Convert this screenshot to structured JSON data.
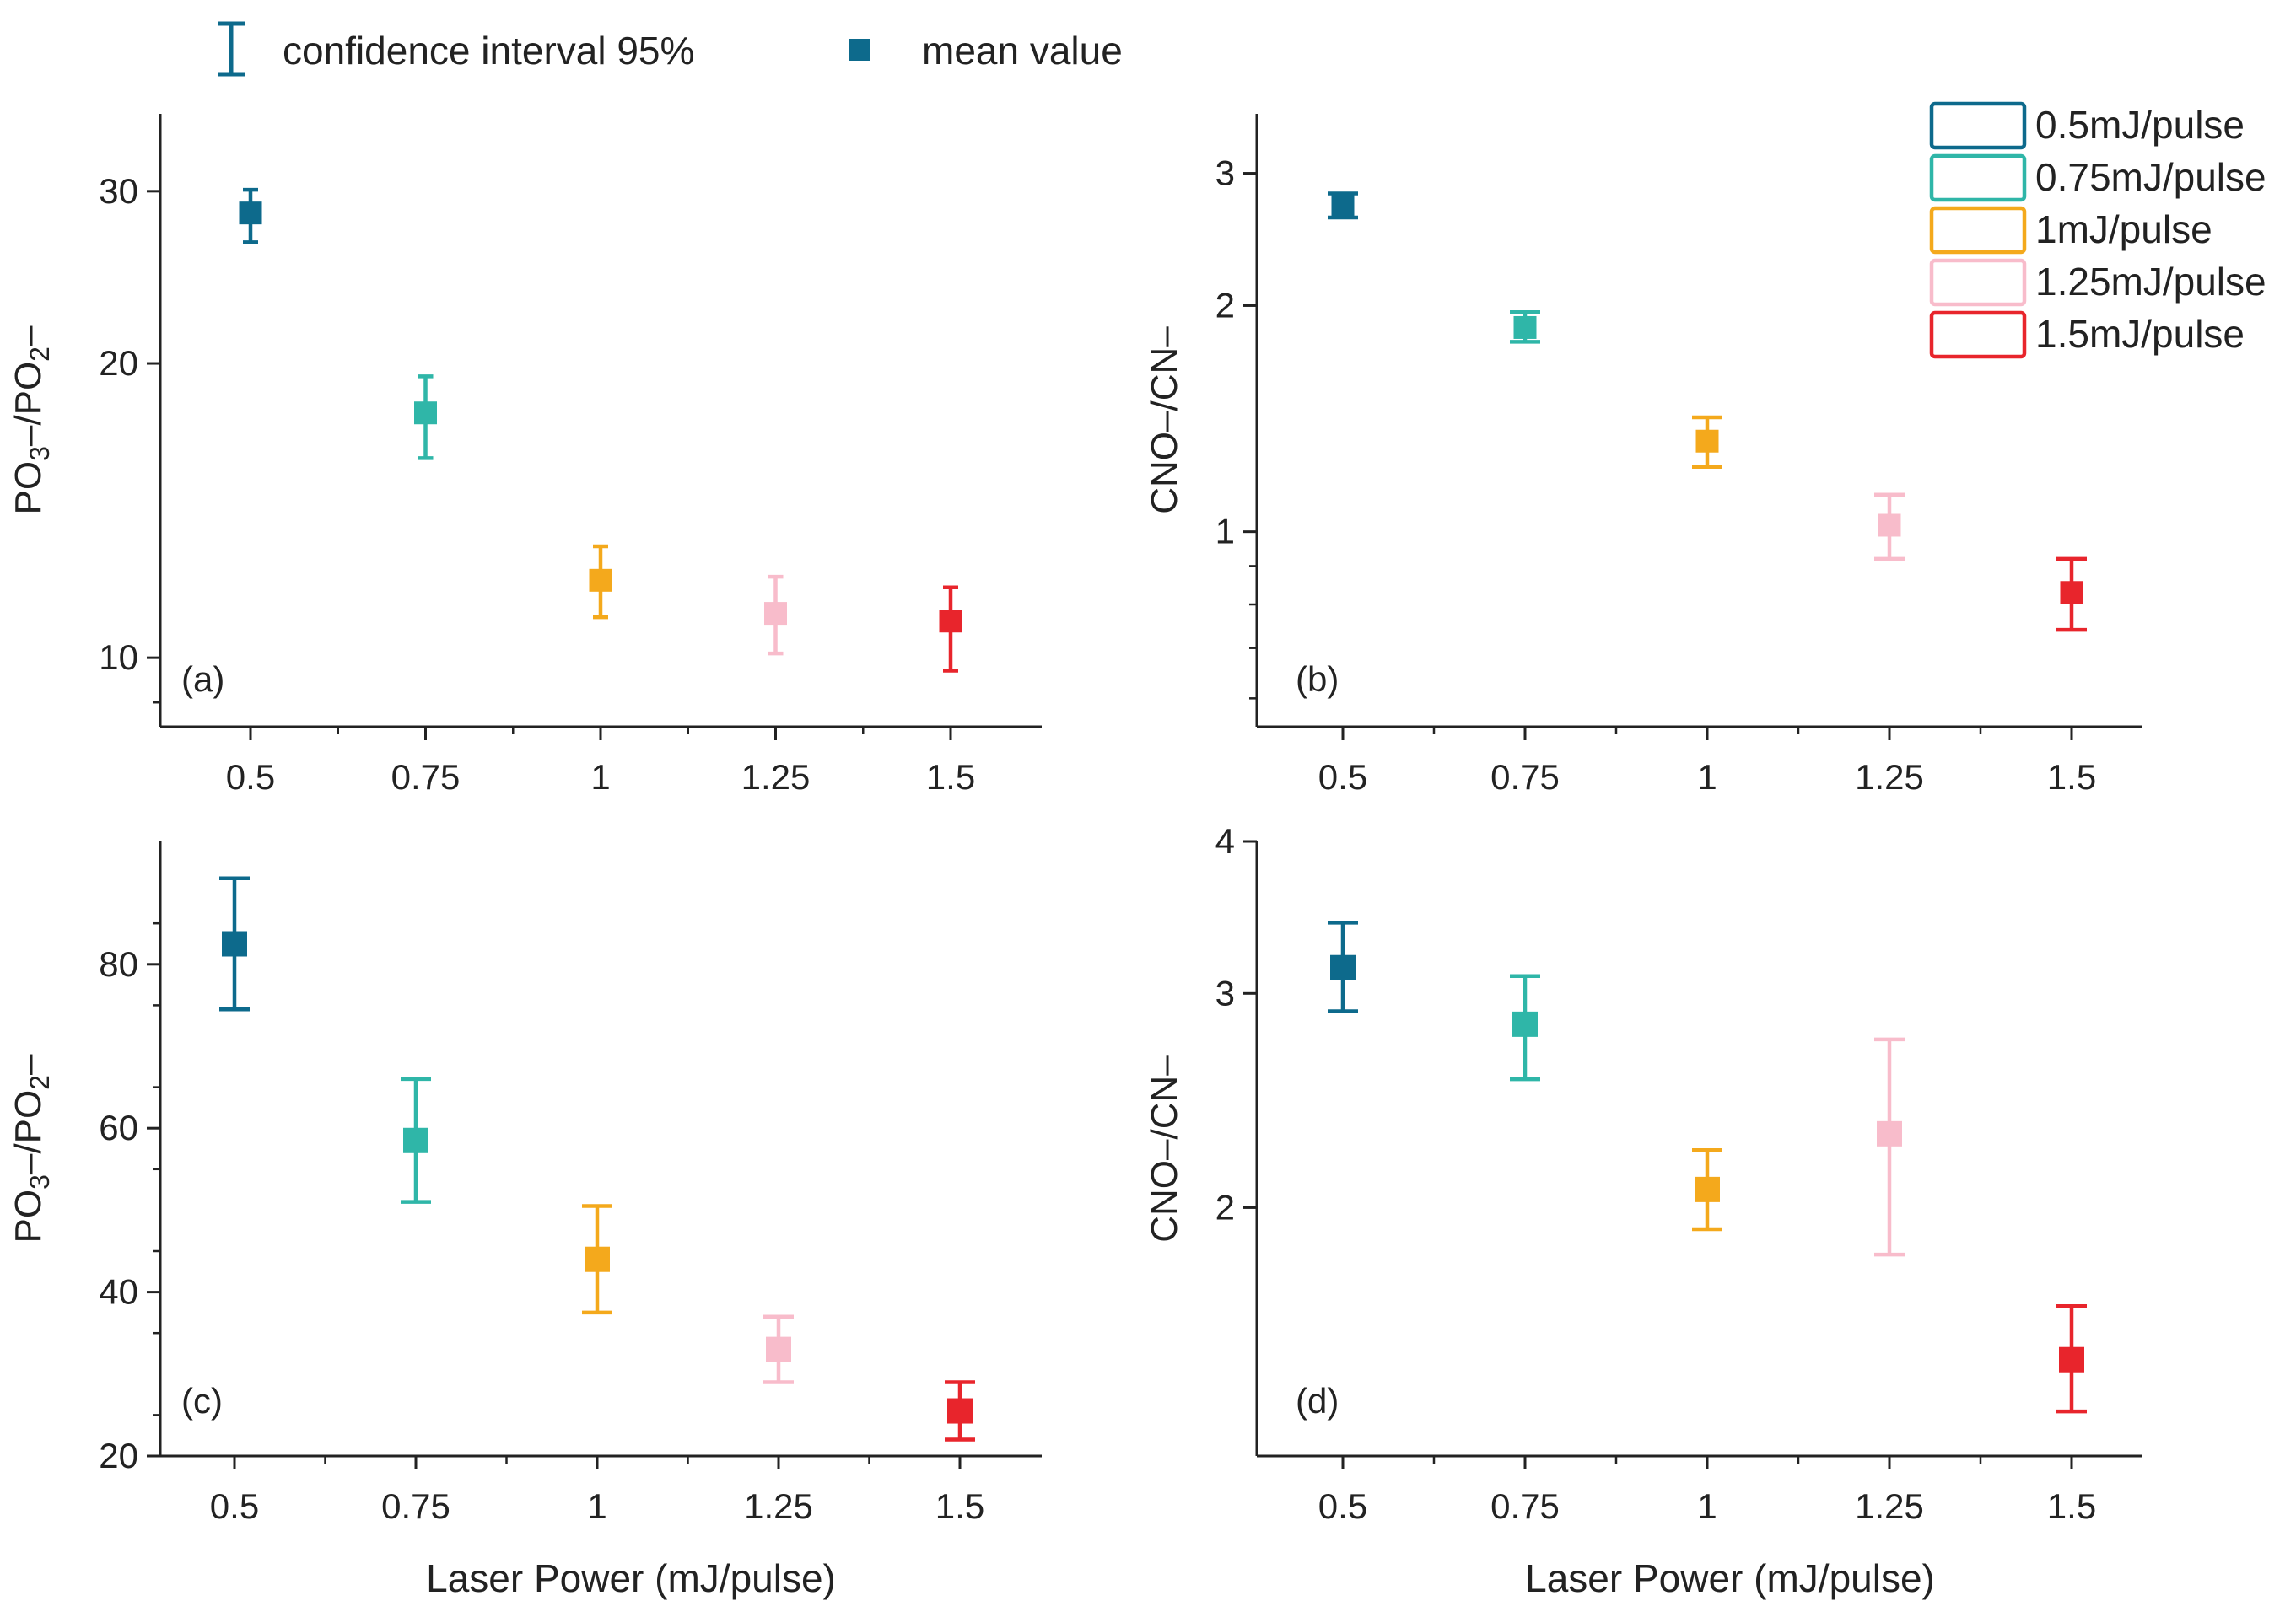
{
  "top_legend": {
    "ci_label": "confidence interval 95%",
    "mean_label": "mean value",
    "mean_color": "#0d6a8c"
  },
  "series_legend": [
    {
      "label": "0.5mJ/pulse",
      "color": "#0d6a8c"
    },
    {
      "label": "0.75mJ/pulse",
      "color": "#2fb6a8"
    },
    {
      "label": "1mJ/pulse",
      "color": "#f4a91c"
    },
    {
      "label": "1.25mJ/pulse",
      "color": "#f8bccb"
    },
    {
      "label": "1.5mJ/pulse",
      "color": "#e8252c"
    }
  ],
  "xlabel": "Laser Power (mJ/pulse)",
  "chart_data": [
    {
      "id": "a",
      "panel_label": "(a)",
      "type": "scatter",
      "yscale": "log",
      "ylabel_parts": [
        "PO",
        "3",
        "–/PO",
        "2",
        "–"
      ],
      "x": [
        "0.5",
        "0.75",
        "1",
        "1.25",
        "1.5"
      ],
      "ylim": [
        8.5,
        36
      ],
      "yticks": [
        10,
        20,
        30
      ],
      "ytick_labels": [
        "10",
        "20",
        "30"
      ],
      "mean": [
        28.5,
        17.8,
        12.0,
        11.1,
        10.9
      ],
      "ci_low": [
        26.6,
        16.0,
        11.0,
        10.1,
        9.7
      ],
      "ci_high": [
        30.1,
        19.4,
        13.0,
        12.1,
        11.8
      ]
    },
    {
      "id": "b",
      "panel_label": "(b)",
      "type": "scatter",
      "yscale": "log",
      "ylabel_parts": [
        "CNO–/CN–"
      ],
      "x": [
        "0.5",
        "0.75",
        "1",
        "1.25",
        "1.5"
      ],
      "ylim": [
        0.55,
        3.6
      ],
      "yticks": [
        1,
        2,
        3
      ],
      "ytick_labels": [
        "1",
        "2",
        "3"
      ],
      "mean": [
        2.72,
        1.87,
        1.32,
        1.02,
        0.83
      ],
      "ci_low": [
        2.62,
        1.79,
        1.22,
        0.92,
        0.74
      ],
      "ci_high": [
        2.82,
        1.96,
        1.42,
        1.12,
        0.92
      ]
    },
    {
      "id": "c",
      "panel_label": "(c)",
      "type": "scatter",
      "yscale": "linear",
      "ylabel_parts": [
        "PO",
        "3",
        "–/PO",
        "2",
        "–"
      ],
      "x": [
        "0.5",
        "0.75",
        "1",
        "1.25",
        "1.5"
      ],
      "ylim": [
        20,
        95
      ],
      "yticks": [
        20,
        40,
        60,
        80
      ],
      "ytick_labels": [
        "20",
        "40",
        "60",
        "80"
      ],
      "mean": [
        82.5,
        58.5,
        44.0,
        33.0,
        25.5
      ],
      "ci_low": [
        74.5,
        51.0,
        37.5,
        29.0,
        22.0
      ],
      "ci_high": [
        90.5,
        66.0,
        50.5,
        37.0,
        29.0
      ]
    },
    {
      "id": "d",
      "panel_label": "(d)",
      "type": "scatter",
      "yscale": "log",
      "ylabel_parts": [
        "CNO–/CN–"
      ],
      "x": [
        "0.5",
        "0.75",
        "1",
        "1.25",
        "1.5"
      ],
      "ylim": [
        1.25,
        4.0
      ],
      "yticks": [
        2,
        3,
        4
      ],
      "ytick_labels": [
        "2",
        "3",
        "4"
      ],
      "mean": [
        3.15,
        2.83,
        2.07,
        2.3,
        1.5
      ],
      "ci_low": [
        2.9,
        2.55,
        1.92,
        1.83,
        1.36
      ],
      "ci_high": [
        3.43,
        3.1,
        2.23,
        2.75,
        1.66
      ]
    }
  ]
}
